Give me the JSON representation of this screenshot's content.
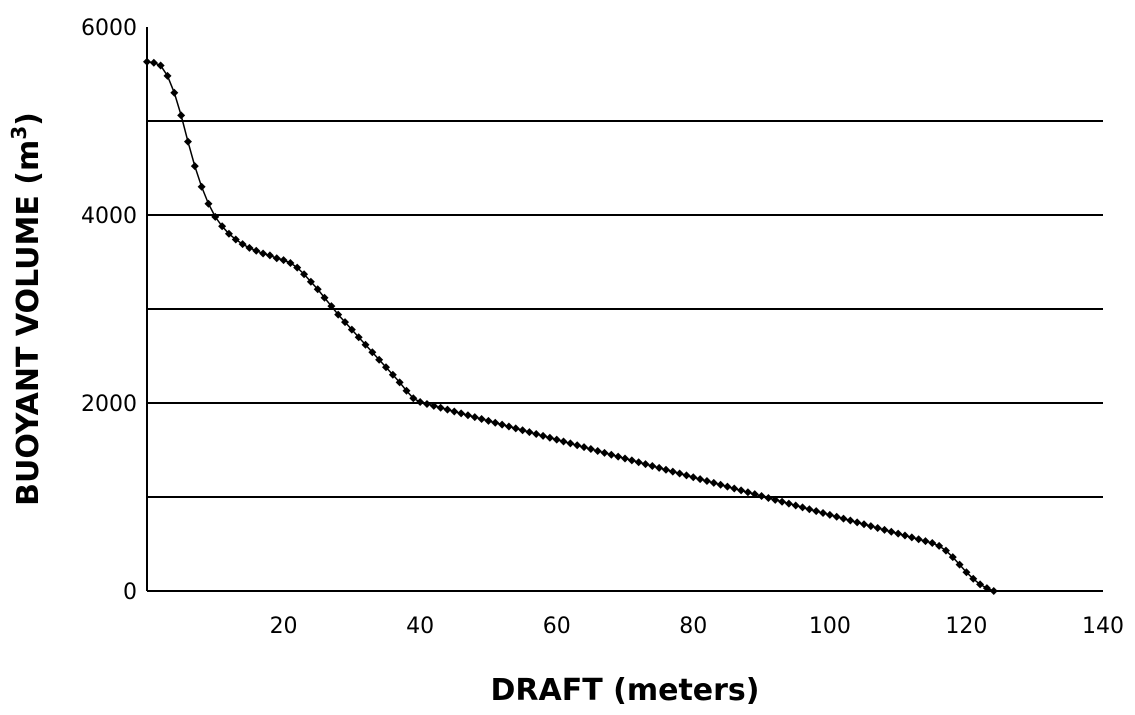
{
  "chart_data": {
    "type": "line",
    "title": "",
    "xlabel": "DRAFT (meters)",
    "ylabel_main": "BUOYANT VOLUME (m",
    "ylabel_sup": "3",
    "ylabel_end": ")",
    "xlim": [
      0,
      140
    ],
    "ylim": [
      0,
      6000
    ],
    "x_ticks": [
      20,
      40,
      60,
      80,
      100,
      120,
      140
    ],
    "x_tick_labels": [
      "20",
      "40",
      "60",
      "80",
      "100",
      "120",
      "140"
    ],
    "y_ticks": [
      0,
      2000,
      4000,
      6000
    ],
    "y_tick_labels": [
      "0",
      "2000",
      "4000",
      "6000"
    ],
    "y_gridlines": [
      1000,
      2000,
      3000,
      4000,
      5000
    ],
    "grid": "horizontal",
    "legend": "none",
    "series": [
      {
        "marker": "diamond",
        "color": "#000000",
        "points": [
          [
            0,
            5630
          ],
          [
            1,
            5620
          ],
          [
            2,
            5590
          ],
          [
            3,
            5480
          ],
          [
            4,
            5300
          ],
          [
            5,
            5060
          ],
          [
            6,
            4780
          ],
          [
            7,
            4520
          ],
          [
            8,
            4300
          ],
          [
            9,
            4120
          ],
          [
            10,
            3980
          ],
          [
            11,
            3880
          ],
          [
            12,
            3800
          ],
          [
            13,
            3740
          ],
          [
            14,
            3690
          ],
          [
            15,
            3650
          ],
          [
            16,
            3620
          ],
          [
            17,
            3590
          ],
          [
            18,
            3570
          ],
          [
            19,
            3540
          ],
          [
            20,
            3520
          ],
          [
            21,
            3490
          ],
          [
            22,
            3440
          ],
          [
            23,
            3370
          ],
          [
            24,
            3290
          ],
          [
            25,
            3210
          ],
          [
            26,
            3120
          ],
          [
            27,
            3030
          ],
          [
            28,
            2940
          ],
          [
            29,
            2860
          ],
          [
            30,
            2780
          ],
          [
            31,
            2700
          ],
          [
            32,
            2620
          ],
          [
            33,
            2540
          ],
          [
            34,
            2460
          ],
          [
            35,
            2380
          ],
          [
            36,
            2300
          ],
          [
            37,
            2220
          ],
          [
            38,
            2130
          ],
          [
            39,
            2050
          ],
          [
            40,
            2010
          ],
          [
            41,
            1990
          ],
          [
            42,
            1970
          ],
          [
            43,
            1950
          ],
          [
            44,
            1930
          ],
          [
            45,
            1910
          ],
          [
            46,
            1890
          ],
          [
            47,
            1870
          ],
          [
            48,
            1850
          ],
          [
            49,
            1830
          ],
          [
            50,
            1810
          ],
          [
            51,
            1790
          ],
          [
            52,
            1770
          ],
          [
            53,
            1750
          ],
          [
            54,
            1730
          ],
          [
            55,
            1710
          ],
          [
            56,
            1690
          ],
          [
            57,
            1670
          ],
          [
            58,
            1650
          ],
          [
            59,
            1630
          ],
          [
            60,
            1610
          ],
          [
            61,
            1590
          ],
          [
            62,
            1570
          ],
          [
            63,
            1550
          ],
          [
            64,
            1530
          ],
          [
            65,
            1510
          ],
          [
            66,
            1490
          ],
          [
            67,
            1470
          ],
          [
            68,
            1450
          ],
          [
            69,
            1430
          ],
          [
            70,
            1410
          ],
          [
            71,
            1390
          ],
          [
            72,
            1370
          ],
          [
            73,
            1350
          ],
          [
            74,
            1330
          ],
          [
            75,
            1310
          ],
          [
            76,
            1290
          ],
          [
            77,
            1270
          ],
          [
            78,
            1250
          ],
          [
            79,
            1230
          ],
          [
            80,
            1210
          ],
          [
            81,
            1190
          ],
          [
            82,
            1170
          ],
          [
            83,
            1150
          ],
          [
            84,
            1130
          ],
          [
            85,
            1110
          ],
          [
            86,
            1090
          ],
          [
            87,
            1070
          ],
          [
            88,
            1050
          ],
          [
            89,
            1030
          ],
          [
            90,
            1010
          ],
          [
            91,
            990
          ],
          [
            92,
            970
          ],
          [
            93,
            950
          ],
          [
            94,
            930
          ],
          [
            95,
            910
          ],
          [
            96,
            890
          ],
          [
            97,
            870
          ],
          [
            98,
            850
          ],
          [
            99,
            830
          ],
          [
            100,
            810
          ],
          [
            101,
            790
          ],
          [
            102,
            770
          ],
          [
            103,
            750
          ],
          [
            104,
            730
          ],
          [
            105,
            710
          ],
          [
            106,
            690
          ],
          [
            107,
            670
          ],
          [
            108,
            650
          ],
          [
            109,
            630
          ],
          [
            110,
            610
          ],
          [
            111,
            590
          ],
          [
            112,
            570
          ],
          [
            113,
            550
          ],
          [
            114,
            530
          ],
          [
            115,
            510
          ],
          [
            116,
            480
          ],
          [
            117,
            430
          ],
          [
            118,
            360
          ],
          [
            119,
            280
          ],
          [
            120,
            200
          ],
          [
            121,
            130
          ],
          [
            122,
            70
          ],
          [
            123,
            30
          ],
          [
            124,
            0
          ]
        ]
      }
    ]
  }
}
